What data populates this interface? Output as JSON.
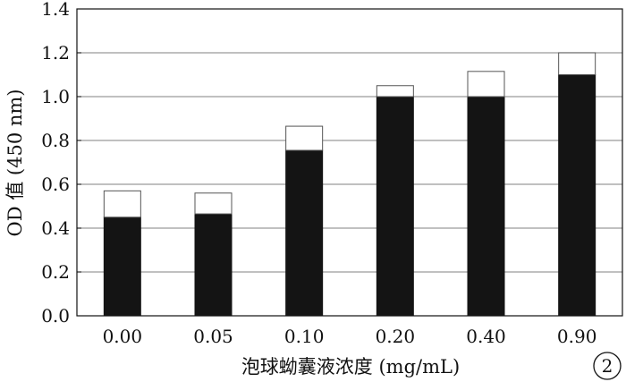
{
  "chart_data": {
    "type": "bar",
    "stacked": true,
    "title": "",
    "xlabel": "泡球蚴囊液浓度 (mg/mL)",
    "ylabel": "OD 值 (450 nm)",
    "categories": [
      "0.00",
      "0.05",
      "0.10",
      "0.20",
      "0.40",
      "0.90"
    ],
    "ylim": [
      0,
      1.4
    ],
    "yticks": [
      "0.0",
      "0.2",
      "0.4",
      "0.6",
      "0.8",
      "1.0",
      "1.2",
      "1.4"
    ],
    "grid": true,
    "series": [
      {
        "values": [
          0.45,
          0.465,
          0.755,
          1.0,
          1.0,
          1.1
        ],
        "color": "#141414"
      },
      {
        "values": [
          0.12,
          0.095,
          0.11,
          0.05,
          0.115,
          0.1
        ],
        "color": "#ffffff"
      }
    ],
    "panel_label": "2"
  }
}
